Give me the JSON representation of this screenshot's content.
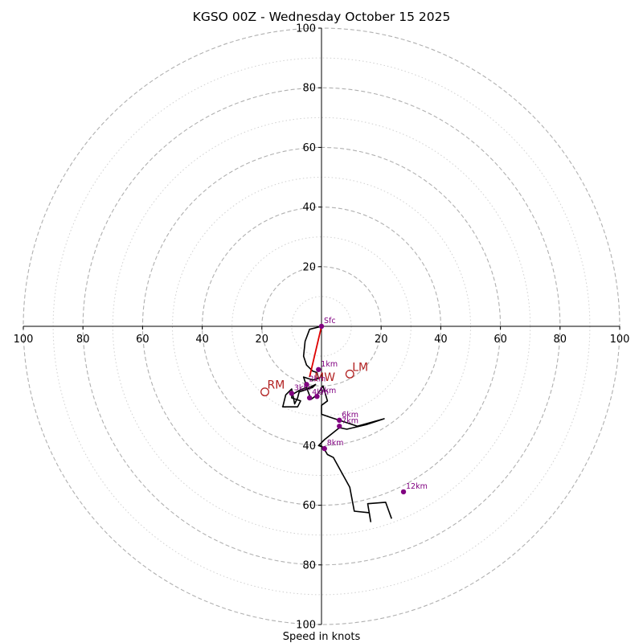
{
  "chart_data": {
    "type": "hodograph",
    "title": "KGSO 00Z - Wednesday October 15 2025",
    "xlabel": "Speed in knots",
    "range": 100,
    "major_rings": [
      20,
      40,
      60,
      80,
      100
    ],
    "minor_rings": [
      10,
      30,
      50,
      70,
      90
    ],
    "x_ticks": [
      {
        "value": -100,
        "label": "100"
      },
      {
        "value": -80,
        "label": "80"
      },
      {
        "value": -60,
        "label": "60"
      },
      {
        "value": -40,
        "label": "40"
      },
      {
        "value": -20,
        "label": "20"
      },
      {
        "value": 20,
        "label": "20"
      },
      {
        "value": 40,
        "label": "40"
      },
      {
        "value": 60,
        "label": "60"
      },
      {
        "value": 80,
        "label": "80"
      },
      {
        "value": 100,
        "label": "100"
      }
    ],
    "y_ticks": [
      {
        "value": 100,
        "label": "100"
      },
      {
        "value": 80,
        "label": "80"
      },
      {
        "value": 60,
        "label": "60"
      },
      {
        "value": 40,
        "label": "40"
      },
      {
        "value": 20,
        "label": "20"
      },
      {
        "value": -40,
        "label": "40"
      },
      {
        "value": -60,
        "label": "60"
      },
      {
        "value": -80,
        "label": "80"
      },
      {
        "value": -100,
        "label": "100"
      }
    ],
    "trace": [
      [
        0,
        0
      ],
      [
        -4,
        -1
      ],
      [
        -5.5,
        -5
      ],
      [
        -6,
        -10
      ],
      [
        -5,
        -13
      ],
      [
        -3,
        -15
      ],
      [
        -1.5,
        -15.5
      ],
      [
        -1,
        -17.5
      ],
      [
        -3,
        -18
      ],
      [
        -6,
        -17
      ],
      [
        -5,
        -20
      ],
      [
        -5,
        -21
      ],
      [
        -2,
        -19.5
      ],
      [
        -3,
        -20.5
      ],
      [
        -7.5,
        -22
      ],
      [
        -8,
        -24
      ],
      [
        -9,
        -26
      ],
      [
        -10,
        -21
      ],
      [
        -12,
        -23
      ],
      [
        -13,
        -27
      ],
      [
        -8,
        -27
      ],
      [
        -7,
        -25
      ],
      [
        -10,
        -24
      ],
      [
        -10,
        -23
      ],
      [
        -7.5,
        -21.5
      ],
      [
        -5,
        -20.5
      ],
      [
        -3.5,
        -24.5
      ],
      [
        -1.5,
        -23
      ],
      [
        -0.5,
        -21.5
      ],
      [
        0.5,
        -20
      ],
      [
        2,
        -25
      ],
      [
        0,
        -26.5
      ],
      [
        0,
        -29.5
      ],
      [
        3,
        -30.5
      ],
      [
        6,
        -31.5
      ],
      [
        12,
        -33.5
      ],
      [
        21,
        -31
      ],
      [
        15,
        -33
      ],
      [
        8.5,
        -34.5
      ],
      [
        6,
        -34
      ],
      [
        1,
        -38
      ],
      [
        -1,
        -40
      ],
      [
        0.5,
        -40.5
      ],
      [
        2,
        -43
      ],
      [
        4,
        -44
      ],
      [
        9.5,
        -54
      ],
      [
        11,
        -62
      ],
      [
        16,
        -62.5
      ],
      [
        16.5,
        -65.5
      ],
      [
        15.5,
        -59.5
      ],
      [
        21.5,
        -59
      ],
      [
        23.5,
        -64.5
      ]
    ],
    "height_markers": [
      {
        "label": "Sfc",
        "u": 0,
        "v": 0
      },
      {
        "label": "1km",
        "u": -1,
        "v": -14.5
      },
      {
        "label": "2km",
        "u": -5,
        "v": -19.5
      },
      {
        "label": "3km",
        "u": -10,
        "v": -22.5
      },
      {
        "label": "4km",
        "u": -4,
        "v": -24
      },
      {
        "label": "5km",
        "u": -1.5,
        "v": -23.5
      },
      {
        "label": "6km",
        "u": 6,
        "v": -31.5
      },
      {
        "label": "7km",
        "u": 6,
        "v": -33.5
      },
      {
        "label": "8km",
        "u": 1,
        "v": -41
      },
      {
        "label": "12km",
        "u": 27.5,
        "v": -55.5
      }
    ],
    "mean_wind_vector": {
      "label": "MW",
      "from": [
        0,
        0
      ],
      "to": [
        -4,
        -17
      ]
    },
    "storm_motion": [
      {
        "label": "RM",
        "u": -19,
        "v": -22
      },
      {
        "label": "LM",
        "u": 9.5,
        "v": -16
      }
    ],
    "colors": {
      "trace": "#000000",
      "markers": "#800080",
      "storm": "#b22222",
      "mean_wind": "#dd0000",
      "major_ring": "#b0b0b0",
      "minor_ring": "#d0d0d0",
      "axis": "#000000"
    }
  }
}
